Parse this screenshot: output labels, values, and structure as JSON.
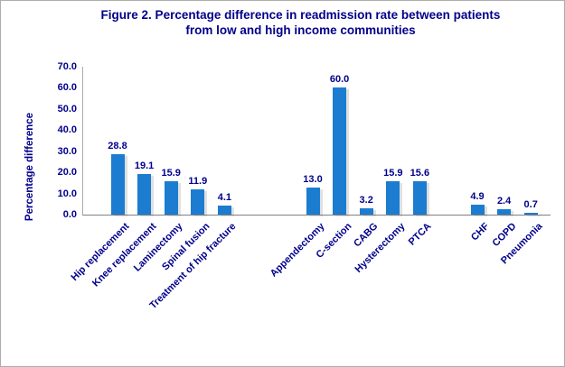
{
  "chart_data": {
    "type": "bar",
    "title": "Figure 2. Percentage difference in readmission rate between patients from low and high income communities",
    "title_lines": [
      "Figure 2. Percentage difference in readmission rate between patients",
      "from low and high income communities"
    ],
    "xlabel": "",
    "ylabel": "Percentage difference",
    "ylim": [
      0,
      70
    ],
    "ytick_step": 10,
    "ytick_decimals": 1,
    "value_label_decimals": 1,
    "grid": false,
    "legend": false,
    "groups": [
      {
        "categories": [
          "Hip replacement",
          "Knee replacement",
          "Laminectomy",
          "Spinal fusion",
          "Treatment of hip fracture"
        ],
        "values": [
          28.8,
          19.1,
          15.9,
          11.9,
          4.1
        ]
      },
      {
        "categories": [
          "Appendectomy",
          "C-section",
          "CABG",
          "Hysterectomy",
          "PTCA"
        ],
        "values": [
          13.0,
          60.0,
          3.2,
          15.9,
          15.6
        ]
      },
      {
        "categories": [
          "CHF",
          "COPD",
          "Pneumonia"
        ],
        "values": [
          4.9,
          2.4,
          0.7
        ]
      }
    ],
    "colors": {
      "bar": "#1b7cd0",
      "text": "#00008b",
      "y_axis_line": "#a9a9a9",
      "x_axis_line": "#808080",
      "bar_shadow": "#d2d2d2"
    }
  }
}
